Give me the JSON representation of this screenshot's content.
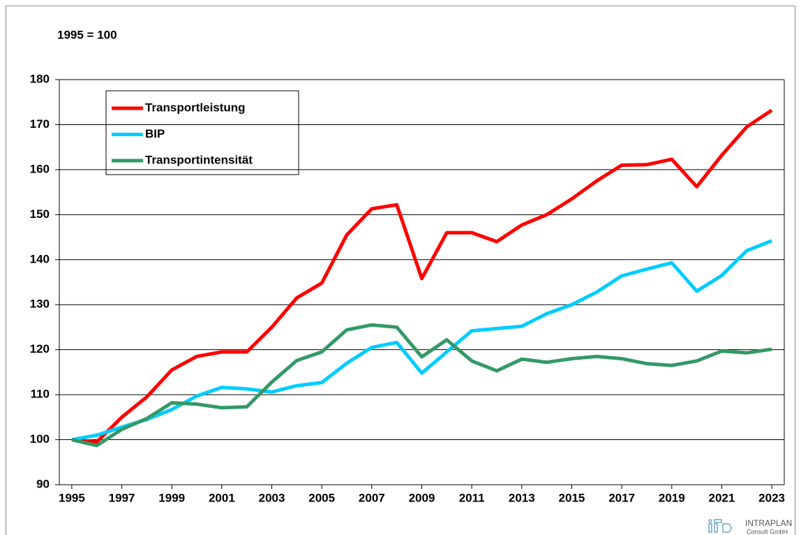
{
  "chart_data": {
    "type": "line",
    "subtitle": "1995 = 100",
    "x": [
      1995,
      1996,
      1997,
      1998,
      1999,
      2000,
      2001,
      2002,
      2003,
      2004,
      2005,
      2006,
      2007,
      2008,
      2009,
      2010,
      2011,
      2012,
      2013,
      2014,
      2015,
      2016,
      2017,
      2018,
      2019,
      2020,
      2021,
      2022,
      2023
    ],
    "series": [
      {
        "name": "Transportleistung",
        "color": "#ff0000",
        "values": [
          100,
          99.5,
          105,
          109.5,
          115.5,
          118.5,
          119.5,
          119.5,
          125,
          131.5,
          134.8,
          145.5,
          151.3,
          152.2,
          135.8,
          146,
          146,
          144,
          147.7,
          150,
          153.5,
          157.5,
          161,
          161.1,
          162.3,
          156.2,
          163.2,
          169.5,
          173.2
        ]
      },
      {
        "name": "BIP",
        "color": "#00ccff",
        "values": [
          100,
          101,
          102.8,
          104.5,
          106.7,
          109.7,
          111.6,
          111.3,
          110.6,
          112,
          112.7,
          117,
          120.5,
          121.6,
          114.8,
          119.5,
          124.2,
          124.7,
          125.2,
          128,
          130,
          132.8,
          136.4,
          137.9,
          139.3,
          133,
          136.5,
          142,
          144.2
        ]
      },
      {
        "name": "Transportintensität",
        "color": "#339966",
        "values": [
          100,
          98.7,
          102.3,
          104.7,
          108.2,
          107.9,
          107.1,
          107.3,
          112.8,
          117.6,
          119.5,
          124.4,
          125.5,
          125,
          118.4,
          122.2,
          117.5,
          115.3,
          117.9,
          117.2,
          118,
          118.5,
          118,
          116.9,
          116.5,
          117.5,
          119.7,
          119.3,
          120.1
        ]
      }
    ],
    "xlim": [
      1994.5,
      2023.5
    ],
    "xticks": [
      1995,
      1997,
      1999,
      2001,
      2003,
      2005,
      2007,
      2009,
      2011,
      2013,
      2015,
      2017,
      2019,
      2021,
      2023
    ],
    "ylim": [
      90,
      180
    ],
    "yticks": [
      90,
      100,
      110,
      120,
      130,
      140,
      150,
      160,
      170,
      180
    ],
    "grid": true,
    "legend": "upper left",
    "logo": [
      "INTRAPLAN",
      "Consult GmbH"
    ]
  }
}
